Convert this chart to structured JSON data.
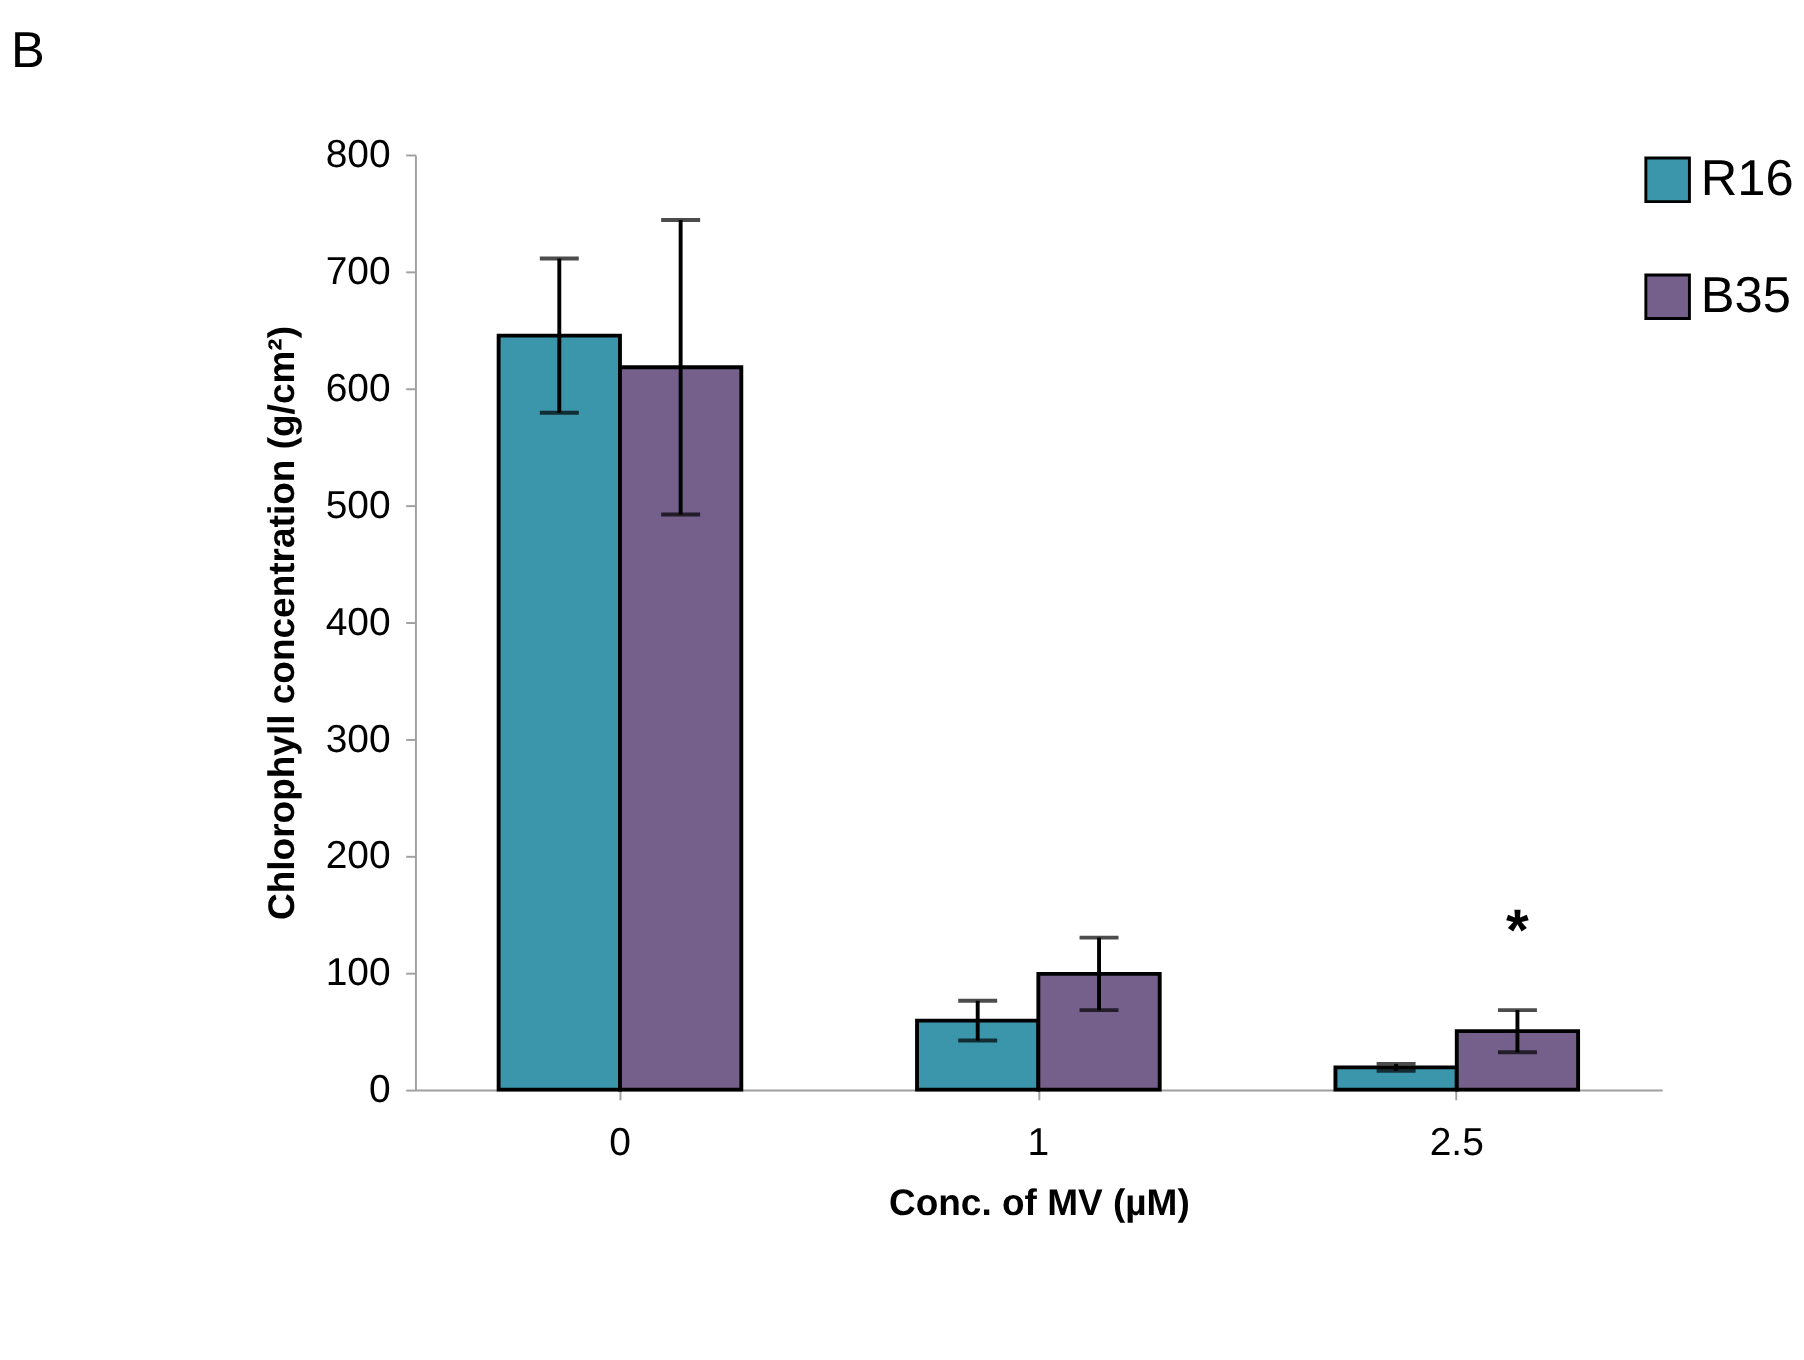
{
  "chart_data": {
    "type": "bar",
    "title": "B",
    "xlabel": "Conc. of MV (µM)",
    "ylabel": "Chlorophyll concentration (g/cm²)",
    "categories": [
      "0",
      "1",
      "2.5"
    ],
    "series": [
      {
        "name": "R16",
        "color": "#3c96ab",
        "values": [
          645,
          59,
          19
        ],
        "errors": [
          66,
          17,
          3
        ]
      },
      {
        "name": "B35",
        "color": "#75608b",
        "values": [
          618,
          99,
          50
        ],
        "errors": [
          126,
          31,
          18
        ]
      }
    ],
    "ylim": [
      0,
      800
    ],
    "yticks": [
      0,
      100,
      200,
      300,
      400,
      500,
      600,
      700,
      800
    ],
    "grid": false,
    "legend": "right",
    "annotations": [
      "*"
    ]
  }
}
